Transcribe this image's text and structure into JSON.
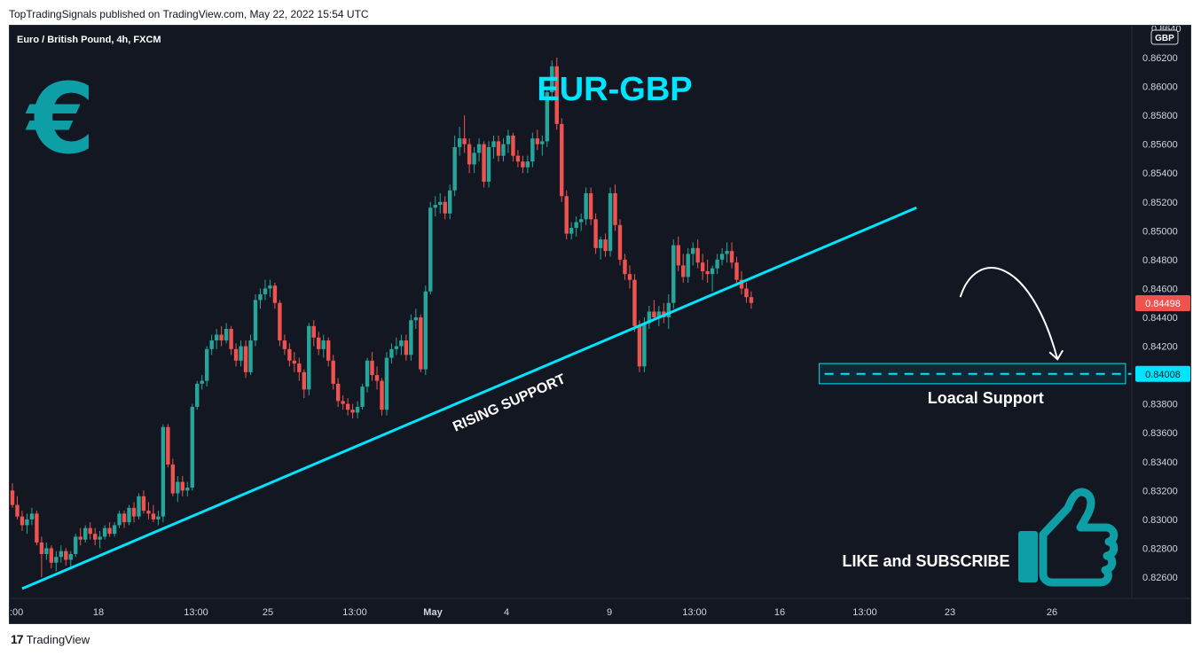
{
  "header": {
    "publish_line": "TopTradingSignals published on TradingView.com, May 22, 2022 15:54 UTC"
  },
  "footer": {
    "brand": "TradingView",
    "logo_glyph": "17"
  },
  "colors": {
    "background": "#131722",
    "up_candle": "#26a69a",
    "down_candle": "#ef5350",
    "trendline": "#00e5ff",
    "accent_teal": "#0e9ea5",
    "price_tag": "#ef5350",
    "support_tag": "#00e5ff"
  },
  "chart_data": {
    "type": "candlestick",
    "instrument": "Euro / British Pound, 4h, FXCM",
    "title": "EUR-GBP",
    "currency_badge": "GBP",
    "symbol_glyph": "€",
    "ylim": [
      0.8245,
      0.8635
    ],
    "y_ticks": [
      "0.86200",
      "0.86000",
      "0.85800",
      "0.85600",
      "0.85400",
      "0.85200",
      "0.85000",
      "0.84800",
      "0.84600",
      "0.84400",
      "0.84200",
      "0.83800",
      "0.83600",
      "0.83400",
      "0.83200",
      "0.83000",
      "0.82800",
      "0.82600"
    ],
    "top_tick_partial": "0.8640",
    "x_ticks": [
      ":00",
      "18",
      "13:00",
      "25",
      "13:00",
      "May",
      "4",
      "9",
      "13:00",
      "16",
      "13:00",
      "23",
      "26"
    ],
    "x_tick_bold_index": 5,
    "last_price": "0.84498",
    "support_price": "0.84008",
    "support_label": "Loacal Support",
    "trendline_label": "RISING SUPPORT",
    "cta_text": "LIKE and SUBSCRIBE",
    "trendline": {
      "start": {
        "bar": 2,
        "price": 0.8252
      },
      "end": {
        "bar": 186,
        "price": 0.8516
      }
    },
    "support_zone": {
      "bar_start": 166,
      "bar_end": 229,
      "price_low": 0.8394,
      "price_high": 0.8408
    },
    "projection_arrow": {
      "start": {
        "bar": 195,
        "price": 0.8454
      },
      "peak": {
        "bar": 202,
        "price": 0.847
      },
      "end": {
        "bar": 215,
        "price": 0.8411
      }
    },
    "candles": [
      [
        0.832,
        0.8325,
        0.8308,
        0.831
      ],
      [
        0.831,
        0.8316,
        0.83,
        0.8302
      ],
      [
        0.8302,
        0.8306,
        0.8292,
        0.8296
      ],
      [
        0.8296,
        0.8304,
        0.829,
        0.83
      ],
      [
        0.83,
        0.8308,
        0.8296,
        0.8304
      ],
      [
        0.8304,
        0.8306,
        0.8282,
        0.8284
      ],
      [
        0.8284,
        0.8288,
        0.826,
        0.8276
      ],
      [
        0.8276,
        0.8284,
        0.8272,
        0.828
      ],
      [
        0.828,
        0.8282,
        0.8266,
        0.827
      ],
      [
        0.827,
        0.8278,
        0.8264,
        0.8274
      ],
      [
        0.8274,
        0.8282,
        0.827,
        0.8278
      ],
      [
        0.8278,
        0.828,
        0.8268,
        0.8272
      ],
      [
        0.8272,
        0.8278,
        0.8266,
        0.8276
      ],
      [
        0.8276,
        0.829,
        0.8274,
        0.8288
      ],
      [
        0.8288,
        0.8294,
        0.8282,
        0.8286
      ],
      [
        0.8286,
        0.8296,
        0.8284,
        0.8294
      ],
      [
        0.8294,
        0.8298,
        0.8286,
        0.829
      ],
      [
        0.829,
        0.8294,
        0.8282,
        0.8286
      ],
      [
        0.8286,
        0.8292,
        0.828,
        0.8288
      ],
      [
        0.8288,
        0.8296,
        0.8286,
        0.8294
      ],
      [
        0.8294,
        0.8298,
        0.8288,
        0.829
      ],
      [
        0.829,
        0.8298,
        0.8288,
        0.8296
      ],
      [
        0.8296,
        0.8306,
        0.8294,
        0.8304
      ],
      [
        0.8304,
        0.8306,
        0.8294,
        0.8298
      ],
      [
        0.8298,
        0.831,
        0.8296,
        0.8308
      ],
      [
        0.8308,
        0.8312,
        0.8298,
        0.8302
      ],
      [
        0.8302,
        0.8318,
        0.83,
        0.8316
      ],
      [
        0.8316,
        0.832,
        0.8304,
        0.8306
      ],
      [
        0.8306,
        0.8312,
        0.83,
        0.8304
      ],
      [
        0.8304,
        0.831,
        0.8298,
        0.83
      ],
      [
        0.83,
        0.8306,
        0.8296,
        0.8302
      ],
      [
        0.8302,
        0.8366,
        0.8298,
        0.8364
      ],
      [
        0.8364,
        0.8366,
        0.8336,
        0.8338
      ],
      [
        0.8338,
        0.8342,
        0.8316,
        0.8318
      ],
      [
        0.8318,
        0.833,
        0.8312,
        0.8326
      ],
      [
        0.8326,
        0.833,
        0.8316,
        0.832
      ],
      [
        0.832,
        0.8326,
        0.8316,
        0.8322
      ],
      [
        0.8322,
        0.838,
        0.832,
        0.8378
      ],
      [
        0.8378,
        0.8396,
        0.8376,
        0.8394
      ],
      [
        0.8394,
        0.84,
        0.839,
        0.8396
      ],
      [
        0.8396,
        0.842,
        0.8392,
        0.8418
      ],
      [
        0.8418,
        0.8428,
        0.8414,
        0.8424
      ],
      [
        0.8424,
        0.8432,
        0.8418,
        0.8428
      ],
      [
        0.8428,
        0.8434,
        0.842,
        0.8424
      ],
      [
        0.8424,
        0.8436,
        0.8422,
        0.8432
      ],
      [
        0.8432,
        0.8434,
        0.8414,
        0.8418
      ],
      [
        0.8418,
        0.8422,
        0.8406,
        0.841
      ],
      [
        0.841,
        0.8424,
        0.8406,
        0.842
      ],
      [
        0.842,
        0.8424,
        0.8398,
        0.8402
      ],
      [
        0.8402,
        0.8428,
        0.84,
        0.8424
      ],
      [
        0.8424,
        0.8456,
        0.842,
        0.8452
      ],
      [
        0.8452,
        0.846,
        0.8446,
        0.8456
      ],
      [
        0.8456,
        0.8466,
        0.8452,
        0.846
      ],
      [
        0.846,
        0.8466,
        0.8454,
        0.8462
      ],
      [
        0.8462,
        0.8464,
        0.8446,
        0.845
      ],
      [
        0.845,
        0.8452,
        0.842,
        0.8424
      ],
      [
        0.8424,
        0.8428,
        0.8414,
        0.8418
      ],
      [
        0.8418,
        0.8422,
        0.8406,
        0.841
      ],
      [
        0.841,
        0.8416,
        0.8402,
        0.8408
      ],
      [
        0.8408,
        0.8412,
        0.8396,
        0.8402
      ],
      [
        0.8402,
        0.8404,
        0.8384,
        0.839
      ],
      [
        0.839,
        0.8436,
        0.8386,
        0.8434
      ],
      [
        0.8434,
        0.8438,
        0.842,
        0.8426
      ],
      [
        0.8426,
        0.843,
        0.8414,
        0.8418
      ],
      [
        0.8418,
        0.8428,
        0.8412,
        0.8424
      ],
      [
        0.8424,
        0.8426,
        0.8406,
        0.841
      ],
      [
        0.841,
        0.8414,
        0.839,
        0.8394
      ],
      [
        0.8394,
        0.8398,
        0.8378,
        0.8382
      ],
      [
        0.8382,
        0.8386,
        0.8376,
        0.838
      ],
      [
        0.838,
        0.8384,
        0.8372,
        0.8376
      ],
      [
        0.8376,
        0.838,
        0.837,
        0.8374
      ],
      [
        0.8374,
        0.8382,
        0.837,
        0.8378
      ],
      [
        0.8378,
        0.8394,
        0.8376,
        0.8392
      ],
      [
        0.8392,
        0.8412,
        0.8388,
        0.841
      ],
      [
        0.841,
        0.8416,
        0.8396,
        0.84
      ],
      [
        0.84,
        0.8406,
        0.839,
        0.8396
      ],
      [
        0.8396,
        0.8398,
        0.8372,
        0.8376
      ],
      [
        0.8376,
        0.8416,
        0.8372,
        0.8412
      ],
      [
        0.8412,
        0.8422,
        0.8408,
        0.8418
      ],
      [
        0.8418,
        0.8426,
        0.8414,
        0.842
      ],
      [
        0.842,
        0.8428,
        0.8414,
        0.8424
      ],
      [
        0.8424,
        0.8428,
        0.841,
        0.8414
      ],
      [
        0.8414,
        0.8442,
        0.841,
        0.8438
      ],
      [
        0.8438,
        0.8446,
        0.8432,
        0.844
      ],
      [
        0.844,
        0.8442,
        0.8402,
        0.8404
      ],
      [
        0.8404,
        0.8462,
        0.84,
        0.8458
      ],
      [
        0.8458,
        0.852,
        0.8456,
        0.8516
      ],
      [
        0.8516,
        0.8524,
        0.851,
        0.8518
      ],
      [
        0.8518,
        0.8526,
        0.8512,
        0.852
      ],
      [
        0.852,
        0.8524,
        0.8508,
        0.8512
      ],
      [
        0.8512,
        0.8532,
        0.8508,
        0.8528
      ],
      [
        0.8528,
        0.8566,
        0.8524,
        0.8558
      ],
      [
        0.8558,
        0.8572,
        0.8552,
        0.8564
      ],
      [
        0.8564,
        0.858,
        0.8554,
        0.856
      ],
      [
        0.856,
        0.8564,
        0.854,
        0.8546
      ],
      [
        0.8546,
        0.8558,
        0.854,
        0.8554
      ],
      [
        0.8554,
        0.8564,
        0.8548,
        0.856
      ],
      [
        0.856,
        0.8562,
        0.853,
        0.8534
      ],
      [
        0.8534,
        0.8562,
        0.853,
        0.8558
      ],
      [
        0.8558,
        0.8566,
        0.855,
        0.8562
      ],
      [
        0.8562,
        0.8566,
        0.8548,
        0.8552
      ],
      [
        0.8552,
        0.8564,
        0.8548,
        0.856
      ],
      [
        0.856,
        0.857,
        0.8554,
        0.8566
      ],
      [
        0.8566,
        0.8568,
        0.8548,
        0.8552
      ],
      [
        0.8552,
        0.8556,
        0.8544,
        0.8548
      ],
      [
        0.8548,
        0.8552,
        0.854,
        0.8544
      ],
      [
        0.8544,
        0.8552,
        0.854,
        0.8548
      ],
      [
        0.8548,
        0.8568,
        0.8544,
        0.8564
      ],
      [
        0.8564,
        0.857,
        0.8556,
        0.856
      ],
      [
        0.856,
        0.8566,
        0.8552,
        0.8562
      ],
      [
        0.8562,
        0.86,
        0.8558,
        0.8596
      ],
      [
        0.8596,
        0.8618,
        0.859,
        0.8614
      ],
      [
        0.8614,
        0.862,
        0.857,
        0.8574
      ],
      [
        0.8574,
        0.8578,
        0.852,
        0.8524
      ],
      [
        0.8524,
        0.8528,
        0.8494,
        0.8498
      ],
      [
        0.8498,
        0.8506,
        0.8494,
        0.8502
      ],
      [
        0.8502,
        0.851,
        0.8496,
        0.8506
      ],
      [
        0.8506,
        0.8512,
        0.85,
        0.8508
      ],
      [
        0.8508,
        0.853,
        0.8504,
        0.8526
      ],
      [
        0.8526,
        0.853,
        0.8504,
        0.8508
      ],
      [
        0.8508,
        0.8512,
        0.8484,
        0.8488
      ],
      [
        0.8488,
        0.8496,
        0.848,
        0.8494
      ],
      [
        0.8494,
        0.8498,
        0.8482,
        0.8486
      ],
      [
        0.8486,
        0.853,
        0.8482,
        0.8526
      ],
      [
        0.8526,
        0.8532,
        0.85,
        0.8504
      ],
      [
        0.8504,
        0.8508,
        0.8476,
        0.848
      ],
      [
        0.848,
        0.8484,
        0.8466,
        0.847
      ],
      [
        0.847,
        0.8476,
        0.846,
        0.8466
      ],
      [
        0.8466,
        0.847,
        0.843,
        0.8434
      ],
      [
        0.8434,
        0.8438,
        0.8402,
        0.8406
      ],
      [
        0.8406,
        0.844,
        0.8402,
        0.8436
      ],
      [
        0.8436,
        0.8448,
        0.8432,
        0.8444
      ],
      [
        0.8444,
        0.8452,
        0.8438,
        0.844
      ],
      [
        0.844,
        0.8448,
        0.8434,
        0.8444
      ],
      [
        0.8444,
        0.845,
        0.8436,
        0.844
      ],
      [
        0.844,
        0.8456,
        0.8432,
        0.845
      ],
      [
        0.845,
        0.8494,
        0.8446,
        0.849
      ],
      [
        0.849,
        0.8496,
        0.8472,
        0.8476
      ],
      [
        0.8476,
        0.8484,
        0.8464,
        0.8468
      ],
      [
        0.8468,
        0.8488,
        0.8464,
        0.8484
      ],
      [
        0.8484,
        0.8492,
        0.8476,
        0.8488
      ],
      [
        0.8488,
        0.8494,
        0.8474,
        0.8478
      ],
      [
        0.8478,
        0.8484,
        0.8466,
        0.8472
      ],
      [
        0.8472,
        0.848,
        0.8464,
        0.847
      ],
      [
        0.847,
        0.8476,
        0.8458,
        0.8474
      ],
      [
        0.8474,
        0.8484,
        0.847,
        0.848
      ],
      [
        0.848,
        0.8488,
        0.8476,
        0.8484
      ],
      [
        0.8484,
        0.8492,
        0.8478,
        0.8486
      ],
      [
        0.8486,
        0.8492,
        0.8474,
        0.8478
      ],
      [
        0.8478,
        0.8482,
        0.8462,
        0.8466
      ],
      [
        0.8466,
        0.8472,
        0.8456,
        0.846
      ],
      [
        0.846,
        0.8464,
        0.845,
        0.8454
      ],
      [
        0.8454,
        0.8458,
        0.8446,
        0.845
      ]
    ]
  }
}
